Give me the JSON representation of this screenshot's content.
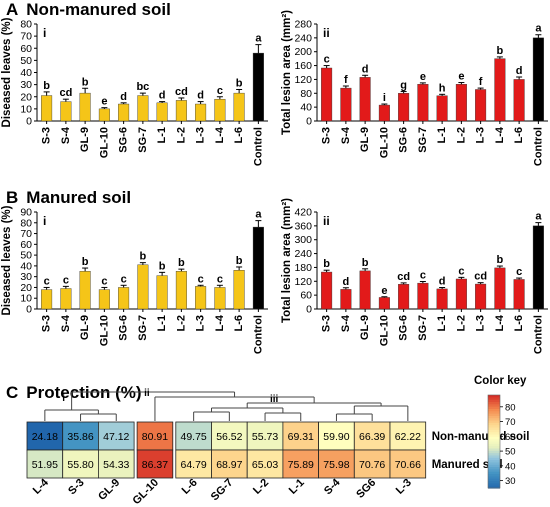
{
  "sections": [
    {
      "letter": "A",
      "title": "Non-manured soil"
    },
    {
      "letter": "B",
      "title": "Manured soil"
    },
    {
      "letter": "C",
      "title": "Protection (%)"
    }
  ],
  "chart_data": [
    {
      "id": "A-i",
      "type": "bar",
      "panel_label": "i",
      "ylabel": "Diseased leaves (%)",
      "ylim": [
        0,
        80
      ],
      "yticks": [
        0,
        10,
        20,
        30,
        40,
        50,
        60,
        70,
        80
      ],
      "categories": [
        "S-3",
        "S-4",
        "GL-9",
        "GL-10",
        "SG-6",
        "SG-7",
        "L-1",
        "L-2",
        "L-3",
        "L-4",
        "L-6",
        "Control"
      ],
      "values": [
        21,
        16,
        23,
        10,
        14,
        21,
        15,
        17,
        14,
        18,
        23,
        56
      ],
      "errors": [
        3,
        2,
        4,
        1,
        1,
        2,
        1,
        2,
        2,
        2,
        3,
        7
      ],
      "letters": [
        "b",
        "cd",
        "b",
        "e",
        "d",
        "bc",
        "d",
        "cd",
        "d",
        "c",
        "b",
        "a"
      ],
      "colors": [
        "#f5c518",
        "#f5c518",
        "#f5c518",
        "#f5c518",
        "#f5c518",
        "#f5c518",
        "#f5c518",
        "#f5c518",
        "#f5c518",
        "#f5c518",
        "#f5c518",
        "#000000"
      ]
    },
    {
      "id": "A-ii",
      "type": "bar",
      "panel_label": "ii",
      "ylabel": "Total lesion area (mm²)",
      "ylim": [
        0,
        280
      ],
      "yticks": [
        0,
        40,
        80,
        120,
        160,
        200,
        240,
        280
      ],
      "categories": [
        "S-3",
        "S-4",
        "GL-9",
        "GL-10",
        "SG-6",
        "SG-7",
        "L-1",
        "L-2",
        "L-3",
        "L-4",
        "L-6",
        "Control"
      ],
      "values": [
        153,
        95,
        126,
        46,
        80,
        106,
        73,
        106,
        91,
        180,
        120,
        240
      ],
      "errors": [
        7,
        6,
        6,
        3,
        5,
        4,
        4,
        5,
        4,
        5,
        7,
        9
      ],
      "letters": [
        "c",
        "f",
        "d",
        "i",
        "g",
        "e",
        "h",
        "e",
        "f",
        "b",
        "d",
        "a"
      ],
      "colors": [
        "#e21a1a",
        "#e21a1a",
        "#e21a1a",
        "#e21a1a",
        "#e21a1a",
        "#e21a1a",
        "#e21a1a",
        "#e21a1a",
        "#e21a1a",
        "#e21a1a",
        "#e21a1a",
        "#000000"
      ]
    },
    {
      "id": "B-i",
      "type": "bar",
      "panel_label": "i",
      "ylabel": "Diseased leaves (%)",
      "ylim": [
        0,
        90
      ],
      "yticks": [
        0,
        10,
        20,
        30,
        40,
        50,
        60,
        70,
        80,
        90
      ],
      "categories": [
        "S-3",
        "S-4",
        "GL-9",
        "GL-10",
        "SG-6",
        "SG-7",
        "L-1",
        "L-2",
        "L-3",
        "L-4",
        "L-6",
        "Control"
      ],
      "values": [
        18,
        19,
        35,
        18,
        20,
        41,
        31,
        35,
        21,
        20,
        36,
        76
      ],
      "errors": [
        2,
        2,
        3,
        2,
        2,
        2,
        3,
        2,
        1,
        2,
        3,
        6
      ],
      "letters": [
        "c",
        "c",
        "b",
        "c",
        "c",
        "b",
        "b",
        "b",
        "c",
        "c",
        "b",
        "a"
      ],
      "colors": [
        "#f5c518",
        "#f5c518",
        "#f5c518",
        "#f5c518",
        "#f5c518",
        "#f5c518",
        "#f5c518",
        "#f5c518",
        "#f5c518",
        "#f5c518",
        "#f5c518",
        "#000000"
      ]
    },
    {
      "id": "B-ii",
      "type": "bar",
      "panel_label": "ii",
      "ylabel": "Total lesion area (mm²)",
      "ylim": [
        0,
        420
      ],
      "yticks": [
        0,
        60,
        120,
        180,
        240,
        300,
        360,
        420
      ],
      "categories": [
        "S-3",
        "S-4",
        "GL-9",
        "GL-10",
        "SG-6",
        "SG-7",
        "L-1",
        "L-2",
        "L-3",
        "L-4",
        "L-6",
        "Control"
      ],
      "values": [
        160,
        85,
        165,
        50,
        107,
        112,
        87,
        130,
        108,
        178,
        128,
        360
      ],
      "errors": [
        8,
        7,
        9,
        3,
        6,
        7,
        6,
        7,
        6,
        8,
        6,
        14
      ],
      "letters": [
        "b",
        "d",
        "b",
        "e",
        "cd",
        "c",
        "d",
        "c",
        "cd",
        "b",
        "c",
        "a"
      ],
      "colors": [
        "#e21a1a",
        "#e21a1a",
        "#e21a1a",
        "#e21a1a",
        "#e21a1a",
        "#e21a1a",
        "#e21a1a",
        "#e21a1a",
        "#e21a1a",
        "#e21a1a",
        "#e21a1a",
        "#000000"
      ]
    },
    {
      "id": "C",
      "type": "heatmap",
      "columns": [
        "L-4",
        "S-3",
        "GL-9",
        "GL-10",
        "L-6",
        "SG-7",
        "L-2",
        "L-1",
        "S-4",
        "SG6",
        "L-3"
      ],
      "rows": [
        "Non-manured soil",
        "Manured soil"
      ],
      "values": [
        [
          24.18,
          35.86,
          47.12,
          80.91,
          49.75,
          56.52,
          55.73,
          69.31,
          59.9,
          66.39,
          62.22
        ],
        [
          51.95,
          55.8,
          54.33,
          86.37,
          64.79,
          68.97,
          65.03,
          75.89,
          75.98,
          70.76,
          70.66
        ]
      ],
      "display": [
        [
          "24.18",
          "35.86",
          "47.12",
          "80.91",
          "49.75",
          "56.52",
          "55.73",
          "69.31",
          "59.90",
          "66.39",
          "62.22"
        ],
        [
          "51.95",
          "55.80",
          "54.33",
          "86.37",
          "64.79",
          "68.97",
          "65.03",
          "75.89",
          "75.98",
          "70.76",
          "70.66"
        ]
      ],
      "cluster_labels": [
        "i",
        "ii",
        "iii"
      ],
      "colorkey": {
        "title": "Color key",
        "range": [
          25,
          88
        ],
        "ticks": [
          30,
          40,
          50,
          60,
          70,
          80
        ]
      }
    }
  ]
}
